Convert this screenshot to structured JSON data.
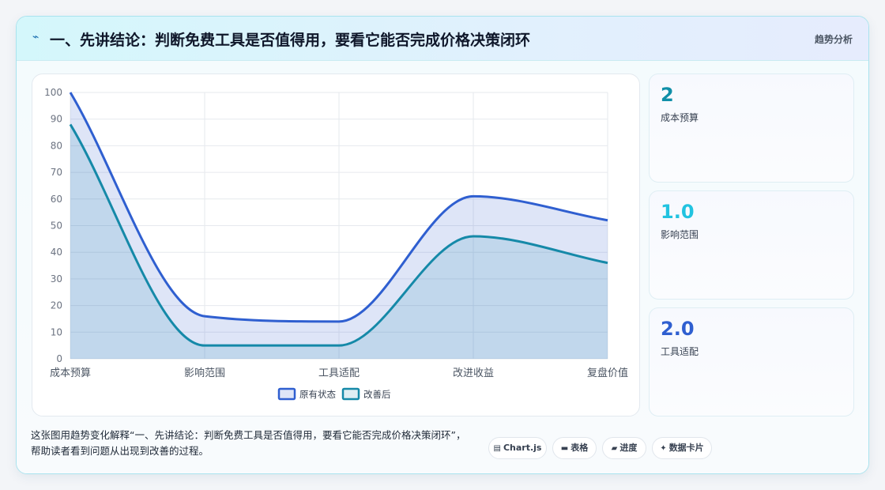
{
  "header": {
    "icon": "bolt-icon",
    "title": "一、先讲结论：判断免费工具是否值得用，要看它能否完成价格决策闭环",
    "tag": "趋势分析"
  },
  "chart_data": {
    "type": "line",
    "categories": [
      "成本预算",
      "影响范围",
      "工具适配",
      "改进收益",
      "复盘价值"
    ],
    "series": [
      {
        "name": "原有状态",
        "values": [
          100,
          16,
          14,
          61,
          52
        ],
        "color": "#2f5fd0"
      },
      {
        "name": "改善后",
        "values": [
          88,
          5,
          5,
          46,
          36
        ],
        "color": "#1589a8"
      }
    ],
    "ylim": [
      0,
      100
    ],
    "yticks": [
      0,
      10,
      20,
      30,
      40,
      50,
      60,
      70,
      80,
      90,
      100
    ],
    "grid": true,
    "legend": "bottom",
    "fill": true
  },
  "kpis": [
    {
      "value": "2",
      "label": "成本预算",
      "color": "#0f8fa8"
    },
    {
      "value": "1.0",
      "label": "影响范围",
      "color": "#22c3e0"
    },
    {
      "value": "2.0",
      "label": "工具适配",
      "color": "#2f5fd0"
    }
  ],
  "footer": {
    "description": "这张图用趋势变化解释“一、先讲结论：判断免费工具是否值得用，要看它能否完成价格决策闭环”，帮助读者看到问题从出现到改善的过程。",
    "chips": [
      {
        "icon": "chart-icon",
        "glyph": "▤",
        "label": "Chart.js"
      },
      {
        "icon": "table-icon",
        "glyph": "▬",
        "label": "表格"
      },
      {
        "icon": "progress-icon",
        "glyph": "▰",
        "label": "进度"
      },
      {
        "icon": "sparkle-icon",
        "glyph": "✦",
        "label": "数据卡片"
      }
    ]
  }
}
